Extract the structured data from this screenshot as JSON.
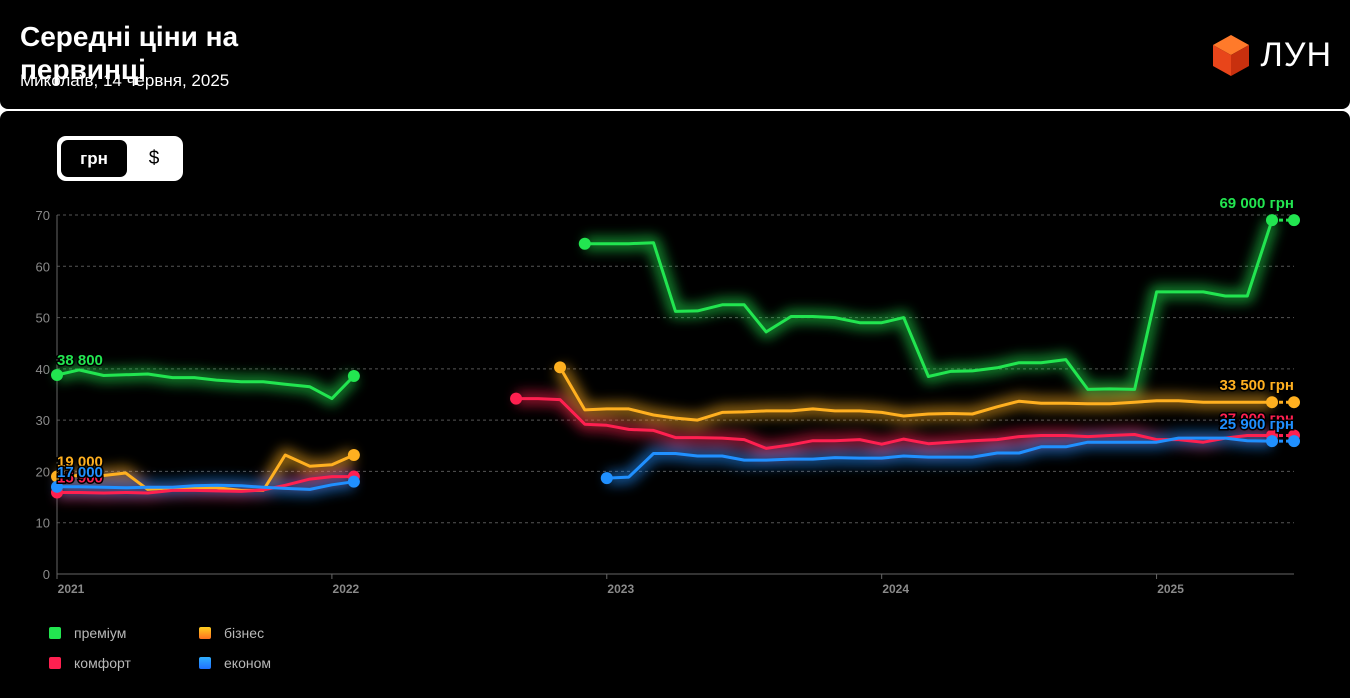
{
  "header": {
    "title": "Середні ціни на первинці",
    "subtitle": "Миколаїв, 14 червня, 2025",
    "brand": "ЛУН"
  },
  "currency_toggle": {
    "options": [
      "грн",
      "$"
    ],
    "selected": "грн"
  },
  "legend": [
    {
      "label": "преміум",
      "color": "#22e550"
    },
    {
      "label": "бізнес",
      "color": "#ffb020"
    },
    {
      "label": "комфорт",
      "color": "#ff2050"
    },
    {
      "label": "економ",
      "color": "#2090ff"
    }
  ],
  "chart_data": {
    "type": "line",
    "title": "Середні ціни на первинці",
    "ylim": [
      0,
      70
    ],
    "yticks": [
      0,
      10,
      20,
      30,
      40,
      50,
      60,
      70
    ],
    "xlim": [
      2021.0,
      2025.5
    ],
    "xticks": [
      {
        "value": 2021,
        "label": "2021"
      },
      {
        "value": 2022,
        "label": "2022"
      },
      {
        "value": 2023,
        "label": "2023"
      },
      {
        "value": 2024,
        "label": "2024"
      },
      {
        "value": 2025,
        "label": "2025"
      }
    ],
    "grid": true,
    "legend_position": "bottom-left",
    "series": [
      {
        "name": "преміум",
        "color": "#22e550",
        "segments": [
          [
            [
              2021.0,
              38.8
            ],
            [
              2021.08,
              39.8
            ],
            [
              2021.17,
              38.7
            ],
            [
              2021.33,
              39.0
            ],
            [
              2021.42,
              38.3
            ],
            [
              2021.5,
              38.3
            ],
            [
              2021.58,
              37.8
            ],
            [
              2021.67,
              37.5
            ],
            [
              2021.75,
              37.5
            ],
            [
              2021.83,
              37.0
            ],
            [
              2021.92,
              36.5
            ],
            [
              2022.0,
              34.2
            ],
            [
              2022.08,
              38.6
            ]
          ],
          [
            [
              2022.92,
              64.4
            ],
            [
              2023.0,
              64.4
            ],
            [
              2023.08,
              64.4
            ],
            [
              2023.17,
              64.6
            ],
            [
              2023.25,
              51.2
            ],
            [
              2023.33,
              51.3
            ],
            [
              2023.42,
              52.5
            ],
            [
              2023.5,
              52.5
            ],
            [
              2023.58,
              47.2
            ],
            [
              2023.67,
              50.2
            ],
            [
              2023.75,
              50.2
            ],
            [
              2023.83,
              50.0
            ],
            [
              2023.92,
              49.0
            ],
            [
              2024.0,
              49.0
            ],
            [
              2024.08,
              50.0
            ],
            [
              2024.17,
              38.5
            ],
            [
              2024.25,
              39.5
            ],
            [
              2024.33,
              39.6
            ],
            [
              2024.42,
              40.2
            ],
            [
              2024.5,
              41.2
            ],
            [
              2024.58,
              41.2
            ],
            [
              2024.67,
              41.8
            ],
            [
              2024.75,
              36.0
            ],
            [
              2024.83,
              36.1
            ],
            [
              2024.92,
              36.0
            ],
            [
              2025.0,
              55.0
            ],
            [
              2025.08,
              55.0
            ],
            [
              2025.17,
              55.0
            ],
            [
              2025.25,
              54.2
            ],
            [
              2025.33,
              54.2
            ],
            [
              2025.42,
              69.0
            ]
          ]
        ],
        "last_label": "69 000 грн",
        "first_label": "38 800"
      },
      {
        "name": "бізнес",
        "color": "#ffb020",
        "segments": [
          [
            [
              2021.0,
              19.0
            ],
            [
              2021.08,
              19.2
            ],
            [
              2021.17,
              19.2
            ],
            [
              2021.25,
              19.7
            ],
            [
              2021.33,
              16.5
            ],
            [
              2021.42,
              16.8
            ],
            [
              2021.5,
              16.8
            ],
            [
              2021.58,
              16.8
            ],
            [
              2021.67,
              16.3
            ],
            [
              2021.75,
              16.3
            ],
            [
              2021.83,
              23.2
            ],
            [
              2021.92,
              21.0
            ],
            [
              2022.0,
              21.3
            ],
            [
              2022.08,
              23.2
            ]
          ],
          [
            [
              2022.83,
              40.3
            ],
            [
              2022.92,
              32.0
            ],
            [
              2023.0,
              32.2
            ],
            [
              2023.08,
              32.2
            ],
            [
              2023.17,
              31.0
            ],
            [
              2023.25,
              30.4
            ],
            [
              2023.33,
              30.0
            ],
            [
              2023.42,
              31.5
            ],
            [
              2023.5,
              31.6
            ],
            [
              2023.58,
              31.8
            ],
            [
              2023.67,
              31.8
            ],
            [
              2023.75,
              32.2
            ],
            [
              2023.83,
              31.8
            ],
            [
              2023.92,
              31.8
            ],
            [
              2024.0,
              31.5
            ],
            [
              2024.08,
              30.8
            ],
            [
              2024.17,
              31.2
            ],
            [
              2024.25,
              31.3
            ],
            [
              2024.33,
              31.2
            ],
            [
              2024.42,
              32.6
            ],
            [
              2024.5,
              33.7
            ],
            [
              2024.58,
              33.3
            ],
            [
              2024.67,
              33.3
            ],
            [
              2024.75,
              33.2
            ],
            [
              2024.83,
              33.2
            ],
            [
              2024.92,
              33.5
            ],
            [
              2025.0,
              33.8
            ],
            [
              2025.08,
              33.8
            ],
            [
              2025.17,
              33.5
            ],
            [
              2025.25,
              33.5
            ],
            [
              2025.33,
              33.5
            ],
            [
              2025.42,
              33.5
            ]
          ]
        ],
        "last_label": "33 500 грн",
        "first_label": "19 000"
      },
      {
        "name": "комфорт",
        "color": "#ff2050",
        "segments": [
          [
            [
              2021.0,
              15.9
            ],
            [
              2021.08,
              15.9
            ],
            [
              2021.17,
              15.8
            ],
            [
              2021.25,
              15.9
            ],
            [
              2021.33,
              15.8
            ],
            [
              2021.42,
              16.3
            ],
            [
              2021.5,
              16.3
            ],
            [
              2021.58,
              16.2
            ],
            [
              2021.67,
              16.1
            ],
            [
              2021.75,
              16.4
            ],
            [
              2021.83,
              17.3
            ],
            [
              2021.92,
              18.5
            ],
            [
              2022.0,
              19.0
            ],
            [
              2022.08,
              19.0
            ]
          ],
          [
            [
              2022.67,
              34.2
            ],
            [
              2022.75,
              34.2
            ],
            [
              2022.83,
              34.0
            ],
            [
              2022.92,
              29.2
            ],
            [
              2023.0,
              29.0
            ],
            [
              2023.08,
              28.2
            ],
            [
              2023.17,
              28.0
            ],
            [
              2023.25,
              26.6
            ],
            [
              2023.33,
              26.6
            ],
            [
              2023.42,
              26.5
            ],
            [
              2023.5,
              26.2
            ],
            [
              2023.58,
              24.5
            ],
            [
              2023.67,
              25.2
            ],
            [
              2023.75,
              26.0
            ],
            [
              2023.83,
              26.0
            ],
            [
              2023.92,
              26.2
            ],
            [
              2024.0,
              25.3
            ],
            [
              2024.08,
              26.3
            ],
            [
              2024.17,
              25.4
            ],
            [
              2024.25,
              25.7
            ],
            [
              2024.33,
              26.0
            ],
            [
              2024.42,
              26.2
            ],
            [
              2024.5,
              26.8
            ],
            [
              2024.58,
              27.0
            ],
            [
              2024.67,
              27.0
            ],
            [
              2024.75,
              26.8
            ],
            [
              2024.83,
              27.0
            ],
            [
              2024.92,
              27.2
            ],
            [
              2025.0,
              26.2
            ],
            [
              2025.08,
              26.2
            ],
            [
              2025.17,
              25.7
            ],
            [
              2025.25,
              26.5
            ],
            [
              2025.33,
              27.0
            ],
            [
              2025.42,
              27.0
            ]
          ]
        ],
        "last_label": "27 000 грн",
        "first_label": "15 900"
      },
      {
        "name": "економ",
        "color": "#2090ff",
        "segments": [
          [
            [
              2021.0,
              17.0
            ],
            [
              2021.08,
              17.0
            ],
            [
              2021.17,
              16.9
            ],
            [
              2021.25,
              16.8
            ],
            [
              2021.33,
              16.9
            ],
            [
              2021.42,
              16.9
            ],
            [
              2021.5,
              17.2
            ],
            [
              2021.58,
              17.3
            ],
            [
              2021.67,
              17.2
            ],
            [
              2021.75,
              16.9
            ],
            [
              2021.83,
              16.7
            ],
            [
              2021.92,
              16.5
            ],
            [
              2022.0,
              17.4
            ],
            [
              2022.08,
              18.0
            ]
          ],
          [
            [
              2023.0,
              18.7
            ],
            [
              2023.08,
              18.9
            ],
            [
              2023.17,
              23.5
            ],
            [
              2023.25,
              23.5
            ],
            [
              2023.33,
              23.0
            ],
            [
              2023.42,
              23.0
            ],
            [
              2023.5,
              22.2
            ],
            [
              2023.58,
              22.2
            ],
            [
              2023.67,
              22.4
            ],
            [
              2023.75,
              22.4
            ],
            [
              2023.83,
              22.7
            ],
            [
              2023.92,
              22.6
            ],
            [
              2024.0,
              22.6
            ],
            [
              2024.08,
              23.0
            ],
            [
              2024.17,
              22.8
            ],
            [
              2024.25,
              22.8
            ],
            [
              2024.33,
              22.8
            ],
            [
              2024.42,
              23.6
            ],
            [
              2024.5,
              23.6
            ],
            [
              2024.58,
              24.8
            ],
            [
              2024.67,
              24.8
            ],
            [
              2024.75,
              25.7
            ],
            [
              2024.83,
              25.7
            ],
            [
              2024.92,
              25.7
            ],
            [
              2025.0,
              25.7
            ],
            [
              2025.08,
              26.5
            ],
            [
              2025.17,
              26.5
            ],
            [
              2025.25,
              26.5
            ],
            [
              2025.33,
              26.0
            ],
            [
              2025.42,
              25.9
            ]
          ]
        ],
        "last_label": "25 900 грн",
        "first_label": "17 000"
      }
    ]
  }
}
